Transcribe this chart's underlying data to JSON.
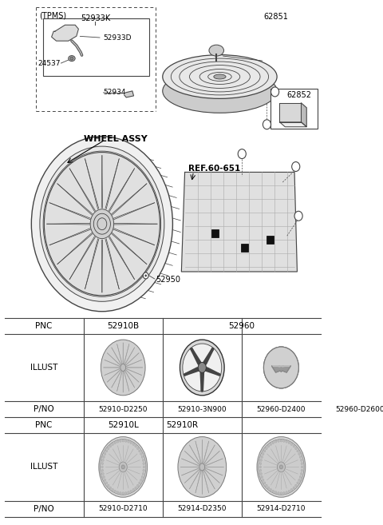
{
  "bg_color": "#ffffff",
  "parts": {
    "tpms_box_label": "(TPMS)",
    "part_52933K": "52933K",
    "part_52933D": "52933D",
    "part_24537": "24537",
    "part_52934": "52934",
    "part_62851": "62851",
    "part_62852": "62852",
    "part_52950": "52950",
    "wheel_assy": "WHEEL ASSY",
    "ref_label": "REF.60-651",
    "label_a": "a"
  },
  "row1": {
    "pnc_left": "52910B",
    "pnc_right": "52960",
    "pno_labels": [
      "52910-D2250",
      "52910-3N900",
      "52960-D2400",
      "52960-D2600"
    ]
  },
  "row2": {
    "pnc_col1": "52910L",
    "pnc_col2": "52910R",
    "pno_labels": [
      "52910-D2710",
      "52914-D2350",
      "52914-D2710"
    ]
  }
}
